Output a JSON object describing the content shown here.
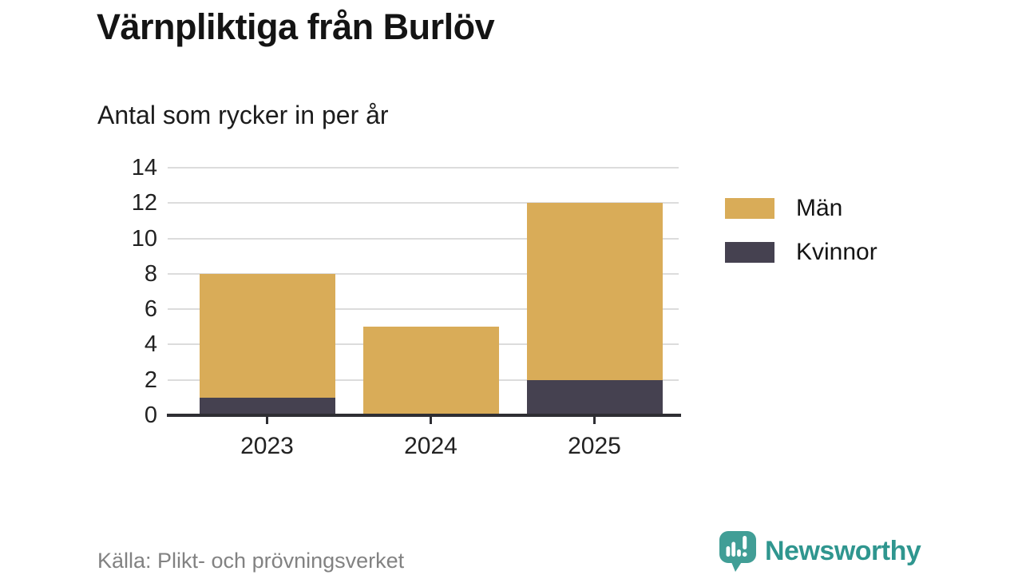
{
  "title": "Värnpliktiga från Burlöv",
  "subtitle": "Antal som rycker in per år",
  "source": "Källa: Plikt- och prövningsverket",
  "brand": {
    "name": "Newsworthy",
    "icon": "newsworthy-speech-bubble-bar-chart-icon",
    "icon_color": "#419E96",
    "text_color": "#2F968F"
  },
  "colors": {
    "men": "#D9AC58",
    "women": "#454150",
    "gridline": "#DCDCDC",
    "axis": "#2E2E33",
    "tick_label": "#222222",
    "title_text": "#141414",
    "muted_text": "#828282",
    "background": "#FFFFFF"
  },
  "legend": [
    {
      "label": "Män",
      "color": "#D9AC58"
    },
    {
      "label": "Kvinnor",
      "color": "#454150"
    }
  ],
  "chart_data": {
    "type": "bar",
    "stacked": true,
    "title": "Värnpliktiga från Burlöv",
    "subtitle": "Antal som rycker in per år",
    "categories": [
      "2023",
      "2024",
      "2025"
    ],
    "series": [
      {
        "name": "Kvinnor",
        "color": "#454150",
        "values": [
          1,
          0,
          2
        ]
      },
      {
        "name": "Män",
        "color": "#D9AC58",
        "values": [
          7,
          5,
          10
        ]
      }
    ],
    "stack_totals": [
      8,
      5,
      12
    ],
    "xlabel": "",
    "ylabel": "",
    "ylim": [
      0,
      14
    ],
    "yticks": [
      0,
      2,
      4,
      6,
      8,
      10,
      12,
      14
    ],
    "grid": true,
    "legend_position": "right",
    "legend_order": [
      "Män",
      "Kvinnor"
    ]
  }
}
